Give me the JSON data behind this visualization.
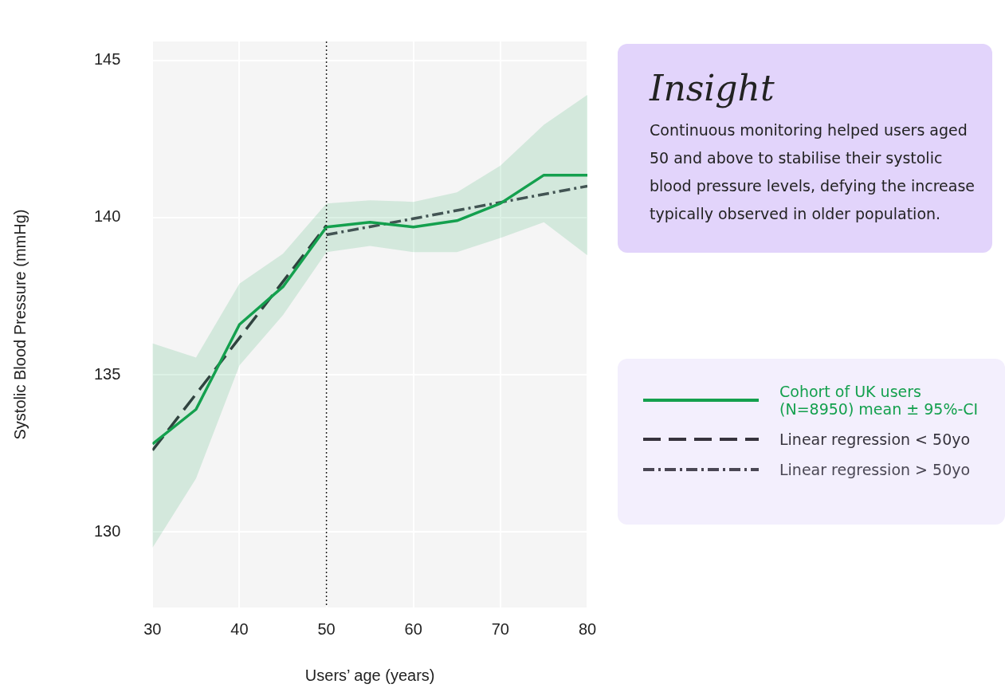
{
  "chart_data": {
    "type": "line",
    "xlabel": "Users’ age (years)",
    "ylabel": "Systolic Blood Pressure (mmHg)",
    "xlim": [
      30,
      80
    ],
    "xticks": [
      30,
      40,
      50,
      60,
      70,
      80
    ],
    "ylim": [
      127.6,
      145.6
    ],
    "yticks": [
      130,
      135,
      140,
      145
    ],
    "grid": true,
    "legend": "right",
    "marker": "none",
    "series": [
      {
        "name": "Cohort of UK users (N=8950) mean ± 95%-CI",
        "color": "#14a04e",
        "line_style": "solid",
        "x": [
          30,
          35,
          40,
          45,
          50,
          55,
          60,
          65,
          70,
          75,
          80
        ],
        "values": [
          132.8,
          133.9,
          136.6,
          137.8,
          139.7,
          139.85,
          139.7,
          139.9,
          140.45,
          141.35,
          141.35
        ],
        "lower": [
          129.5,
          131.7,
          135.3,
          136.9,
          138.9,
          139.1,
          138.9,
          138.9,
          139.35,
          139.85,
          138.8
        ],
        "upper": [
          136.0,
          135.55,
          137.9,
          138.85,
          140.45,
          140.55,
          140.5,
          140.8,
          141.65,
          142.95,
          143.9
        ]
      },
      {
        "name": "Linear regression < 50yo",
        "color": "#36333d",
        "line_style": "dashed",
        "x": [
          30,
          50
        ],
        "values": [
          132.6,
          139.75
        ]
      },
      {
        "name": "Linear regression > 50yo",
        "color": "#4a4754",
        "line_style": "dotted",
        "x": [
          50,
          80
        ],
        "values": [
          139.45,
          141.0
        ]
      }
    ],
    "ref_lines": [
      {
        "axis": "x",
        "value": 50,
        "color": "#222222",
        "line_style": "dotted"
      }
    ],
    "annotations": [
      "Insight",
      "Continuous monitoring helped users aged 50 and above to stabilise their systolic blood pressure levels, defying the increase typically observed in older population."
    ]
  }
}
